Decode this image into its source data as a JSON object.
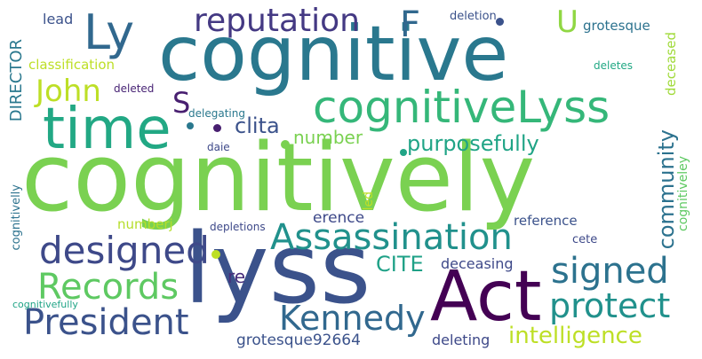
{
  "words": [
    {
      "text": "cognitively",
      "color": "#7ad151"
    },
    {
      "text": "cognitive",
      "color": "#2a788e"
    },
    {
      "text": "lyss",
      "color": "#3b528b"
    },
    {
      "text": "Act",
      "color": "#440154"
    },
    {
      "text": "time",
      "color": "#22a884"
    },
    {
      "text": "cognitiveLyss",
      "color": "#35b779"
    },
    {
      "text": "Ly",
      "color": "#31688e"
    },
    {
      "text": "reputation",
      "color": "#443983"
    },
    {
      "text": "F",
      "color": "#31688e"
    },
    {
      "text": "U",
      "color": "#90d743"
    },
    {
      "text": "John",
      "color": "#bddf26"
    },
    {
      "text": "S",
      "color": "#481f70"
    },
    {
      "text": "Assassination",
      "color": "#21918c"
    },
    {
      "text": "designed",
      "color": "#3e4989"
    },
    {
      "text": "Records",
      "color": "#5ec962"
    },
    {
      "text": "President",
      "color": "#3b528b"
    },
    {
      "text": "Kennedy",
      "color": "#31688e"
    },
    {
      "text": "signed",
      "color": "#2c728e"
    },
    {
      "text": "protect",
      "color": "#21918c"
    },
    {
      "text": "intelligence",
      "color": "#bddf26"
    },
    {
      "text": "community",
      "color": "#2c728e"
    },
    {
      "text": "purposefully",
      "color": "#20a486"
    },
    {
      "text": "number",
      "color": "#7ad151"
    },
    {
      "text": "clita",
      "color": "#3b528b"
    },
    {
      "text": "CITE",
      "color": "#1fa187"
    },
    {
      "text": "re",
      "color": "#472d7b"
    },
    {
      "text": "deceasing",
      "color": "#3e4989"
    },
    {
      "text": "grotesque92664",
      "color": "#3b528b"
    },
    {
      "text": "deleting",
      "color": "#3e4989"
    },
    {
      "text": "DIRECTOR",
      "color": "#2a788e"
    },
    {
      "text": "classification",
      "color": "#bddf26"
    },
    {
      "text": "lead",
      "color": "#3b528b"
    },
    {
      "text": "deletion",
      "color": "#3b528b"
    },
    {
      "text": "grotesque",
      "color": "#2c728e"
    },
    {
      "text": "deceased",
      "color": "#a0da39"
    },
    {
      "text": "deletes",
      "color": "#22a884"
    },
    {
      "text": "deleted",
      "color": "#482475"
    },
    {
      "text": "delegating",
      "color": "#2a788e"
    },
    {
      "text": "daie",
      "color": "#3e4989"
    },
    {
      "text": "erence",
      "color": "#3e4989"
    },
    {
      "text": "reference",
      "color": "#3b528b"
    },
    {
      "text": "cognitiveley",
      "color": "#5ec962"
    },
    {
      "text": "cete",
      "color": "#3e4989"
    },
    {
      "text": "led",
      "color": "#bddf26"
    },
    {
      "text": "depletions",
      "color": "#3e4989"
    },
    {
      "text": "numberj",
      "color": "#b5de2b"
    },
    {
      "text": "cognitivelly",
      "color": "#2c728e"
    },
    {
      "text": "cognitivefully",
      "color": "#20a486"
    }
  ],
  "dots": [
    "#7ad151",
    "#bddf26",
    "#481f70",
    "#20a486",
    "#3b528b",
    "#2a788e"
  ]
}
